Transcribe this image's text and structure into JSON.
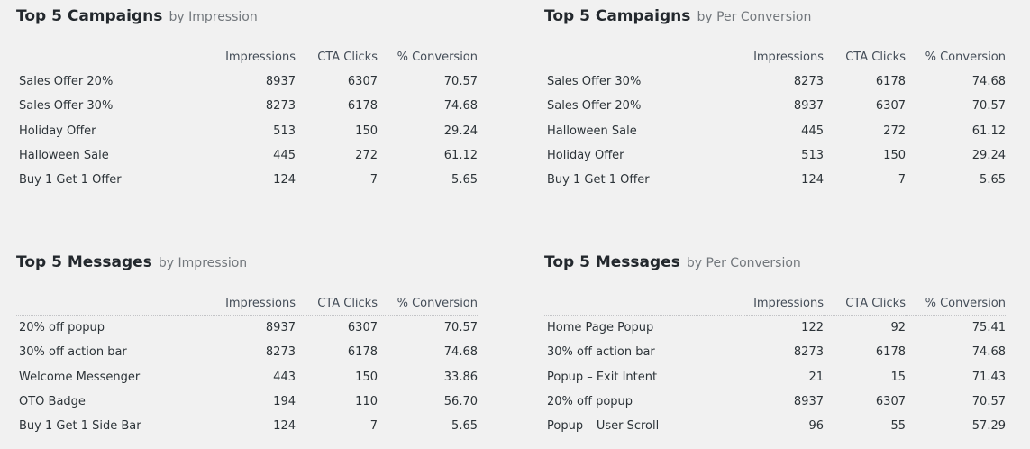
{
  "columns": {
    "impressions": "Impressions",
    "cta_clicks": "CTA Clicks",
    "conversion": "% Conversion"
  },
  "panels": [
    {
      "title": "Top 5 Campaigns",
      "subtitle": "by Impression",
      "rows": [
        {
          "name": "Sales Offer 20%",
          "impressions": "8937",
          "cta_clicks": "6307",
          "conversion": "70.57"
        },
        {
          "name": "Sales Offer 30%",
          "impressions": "8273",
          "cta_clicks": "6178",
          "conversion": "74.68"
        },
        {
          "name": "Holiday Offer",
          "impressions": "513",
          "cta_clicks": "150",
          "conversion": "29.24"
        },
        {
          "name": "Halloween Sale",
          "impressions": "445",
          "cta_clicks": "272",
          "conversion": "61.12"
        },
        {
          "name": "Buy 1 Get 1 Offer",
          "impressions": "124",
          "cta_clicks": "7",
          "conversion": "5.65"
        }
      ]
    },
    {
      "title": "Top 5 Campaigns",
      "subtitle": "by Per Conversion",
      "rows": [
        {
          "name": "Sales Offer 30%",
          "impressions": "8273",
          "cta_clicks": "6178",
          "conversion": "74.68"
        },
        {
          "name": "Sales Offer 20%",
          "impressions": "8937",
          "cta_clicks": "6307",
          "conversion": "70.57"
        },
        {
          "name": "Halloween Sale",
          "impressions": "445",
          "cta_clicks": "272",
          "conversion": "61.12"
        },
        {
          "name": "Holiday Offer",
          "impressions": "513",
          "cta_clicks": "150",
          "conversion": "29.24"
        },
        {
          "name": "Buy 1 Get 1 Offer",
          "impressions": "124",
          "cta_clicks": "7",
          "conversion": "5.65"
        }
      ]
    },
    {
      "title": "Top 5 Messages",
      "subtitle": "by Impression",
      "rows": [
        {
          "name": "20% off popup",
          "impressions": "8937",
          "cta_clicks": "6307",
          "conversion": "70.57"
        },
        {
          "name": "30% off action bar",
          "impressions": "8273",
          "cta_clicks": "6178",
          "conversion": "74.68"
        },
        {
          "name": "Welcome Messenger",
          "impressions": "443",
          "cta_clicks": "150",
          "conversion": "33.86"
        },
        {
          "name": "OTO Badge",
          "impressions": "194",
          "cta_clicks": "110",
          "conversion": "56.70"
        },
        {
          "name": "Buy 1 Get 1 Side Bar",
          "impressions": "124",
          "cta_clicks": "7",
          "conversion": "5.65"
        }
      ]
    },
    {
      "title": "Top 5 Messages",
      "subtitle": "by Per Conversion",
      "rows": [
        {
          "name": "Home Page Popup",
          "impressions": "122",
          "cta_clicks": "92",
          "conversion": "75.41"
        },
        {
          "name": "30% off action bar",
          "impressions": "8273",
          "cta_clicks": "6178",
          "conversion": "74.68"
        },
        {
          "name": "Popup – Exit Intent",
          "impressions": "21",
          "cta_clicks": "15",
          "conversion": "71.43"
        },
        {
          "name": "20% off popup",
          "impressions": "8937",
          "cta_clicks": "6307",
          "conversion": "70.57"
        },
        {
          "name": "Popup – User Scroll",
          "impressions": "96",
          "cta_clicks": "55",
          "conversion": "57.29"
        }
      ]
    }
  ]
}
